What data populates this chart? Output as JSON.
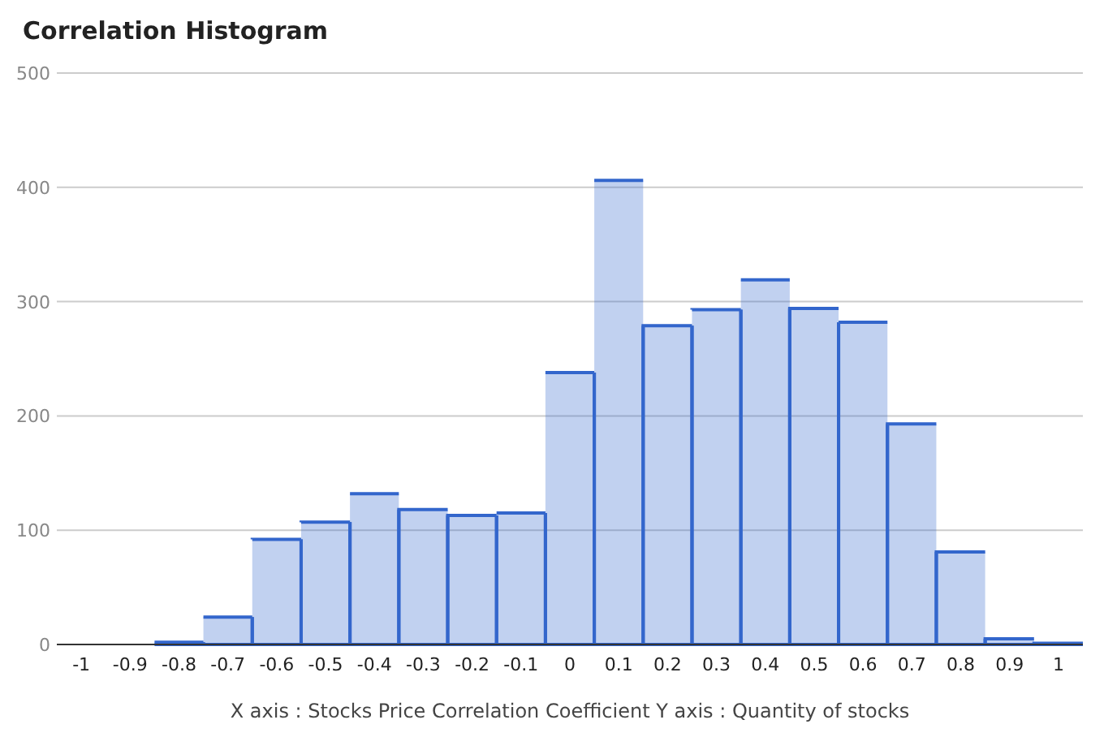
{
  "chart_data": {
    "type": "histogram",
    "title": "Correlation Histogram",
    "bins": [
      -1.05,
      -0.95,
      -0.85,
      -0.75,
      -0.65,
      -0.55,
      -0.45,
      -0.35,
      -0.25,
      -0.15,
      -0.05,
      0.05,
      0.15,
      0.25,
      0.35,
      0.45,
      0.55,
      0.65,
      0.75,
      0.85,
      0.95,
      1.05
    ],
    "values": [
      0,
      0,
      2,
      24,
      92,
      107,
      132,
      118,
      113,
      115,
      238,
      406,
      279,
      293,
      319,
      294,
      282,
      193,
      81,
      5,
      1
    ],
    "color": "#3366cc",
    "xlim": [
      -1.05,
      1.05
    ],
    "xticks": [
      -1,
      -0.9,
      -0.8,
      -0.7,
      -0.6,
      -0.5,
      -0.4,
      -0.3,
      -0.2,
      -0.1,
      0,
      0.1,
      0.2,
      0.3,
      0.4,
      0.5,
      0.6,
      0.7,
      0.8,
      0.9,
      1
    ],
    "ylim": [
      0,
      500
    ],
    "yticks": [
      0,
      100,
      200,
      300,
      400,
      500
    ],
    "xlabel": "X axis : Stocks Price Correlation Coefficient  Y axis : Quantity of stocks",
    "grid": "y"
  }
}
